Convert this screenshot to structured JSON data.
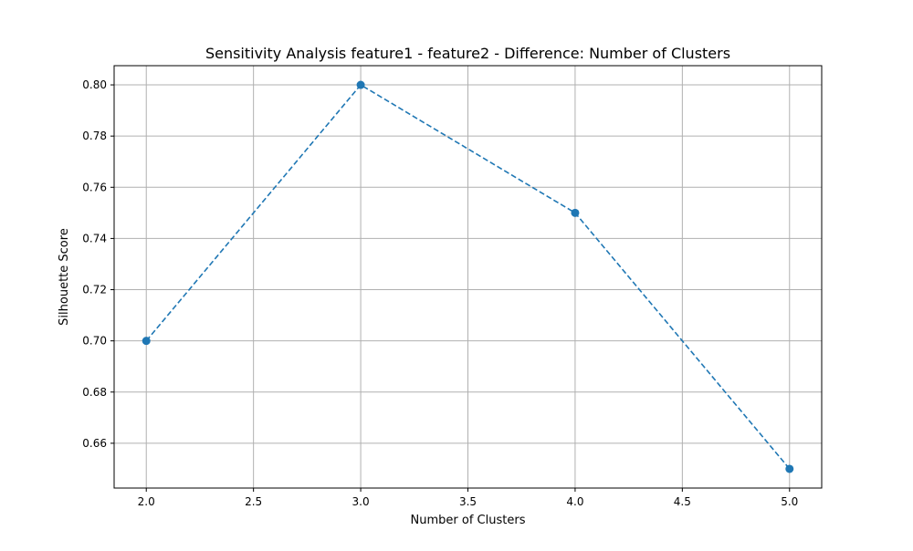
{
  "chart_data": {
    "type": "line",
    "title": "Sensitivity Analysis feature1 - feature2 - Difference: Number of Clusters",
    "xlabel": "Number of Clusters",
    "ylabel": "Silhouette Score",
    "x": [
      2,
      3,
      4,
      5
    ],
    "series": [
      {
        "values": [
          0.7,
          0.8,
          0.75,
          0.65
        ]
      }
    ],
    "xlim": [
      1.85,
      5.15
    ],
    "ylim": [
      0.6425,
      0.8075
    ],
    "xticks": [
      "2.0",
      "2.5",
      "3.0",
      "3.5",
      "4.0",
      "4.5",
      "5.0"
    ],
    "yticks": [
      "0.66",
      "0.68",
      "0.70",
      "0.72",
      "0.74",
      "0.76",
      "0.78",
      "0.80"
    ],
    "grid": true,
    "line_style": "dashed",
    "marker": "circle",
    "colors": {
      "series": "#1f77b4",
      "grid": "#b0b0b0",
      "axis": "#000000"
    }
  }
}
